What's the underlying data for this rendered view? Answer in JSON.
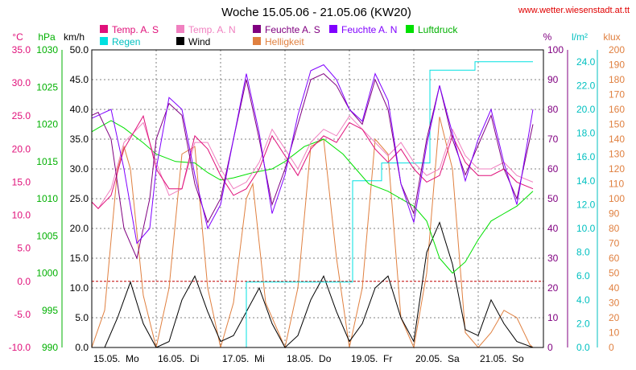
{
  "chart_data": {
    "type": "line",
    "title": "Woche 15.05.06 - 21.05.06 (KW20)",
    "source": "www.wetter.wiesenstadt.at.tt",
    "colors": {
      "temp_s": "#e0107a",
      "temp_n": "#f080c0",
      "feuchte_s": "#800080",
      "feuchte_n": "#8000ff",
      "luftdruck": "#00e000",
      "regen": "#00e0e0",
      "wind": "#000000",
      "helligkeit": "#e08040",
      "zero_line": "#c00000"
    },
    "legend": {
      "temp_s": "Temp. A. S",
      "temp_n": "Temp. A. N",
      "feuchte_s": "Feuchte A. S",
      "feuchte_n": "Feuchte A. N",
      "luftdruck": "Luftdruck",
      "regen": "Regen",
      "wind": "Wind",
      "helligkeit": "Helligkeit"
    },
    "axes": {
      "temp": {
        "unit": "°C",
        "min": -10,
        "max": 35,
        "ticks": [
          "35.0",
          "30.0",
          "25.0",
          "20.0",
          "15.0",
          "10.0",
          "5.0",
          "0.0",
          "-5.0",
          "-10.0"
        ]
      },
      "pressure": {
        "unit": "hPa",
        "min": 990,
        "max": 1030,
        "ticks": [
          "1030",
          "1025",
          "1020",
          "1015",
          "1010",
          "1005",
          "1000",
          "995",
          "990"
        ]
      },
      "wind": {
        "unit": "km/h",
        "min": 0,
        "max": 50,
        "ticks": [
          "50.0",
          "45.0",
          "40.0",
          "35.0",
          "30.0",
          "25.0",
          "20.0",
          "15.0",
          "10.0",
          "5.0",
          "0.0"
        ]
      },
      "humidity": {
        "unit": "%",
        "min": 0,
        "max": 100,
        "ticks": [
          "100",
          "90",
          "80",
          "70",
          "60",
          "50",
          "40",
          "30",
          "20",
          "10",
          "0"
        ]
      },
      "rain": {
        "unit": "l/m²",
        "min": 0,
        "max": 25,
        "ticks": [
          "24.0",
          "22.0",
          "20.0",
          "18.0",
          "16.0",
          "14.0",
          "12.0",
          "10.0",
          "8.0",
          "6.0",
          "4.0",
          "2.0",
          "0.0"
        ]
      },
      "brightness": {
        "unit": "klux",
        "min": 0,
        "max": 200,
        "ticks": [
          "200",
          "190",
          "180",
          "170",
          "160",
          "150",
          "140",
          "130",
          "120",
          "110",
          "100",
          "90",
          "80",
          "70",
          "60",
          "50",
          "40",
          "30",
          "20",
          "10",
          "0"
        ]
      }
    },
    "x_days": [
      "15.05.",
      "16.05.",
      "17.05.",
      "18.05.",
      "19.05.",
      "20.05.",
      "21.05."
    ],
    "x_day_names": [
      "Mo",
      "Di",
      "Mi",
      "Do",
      "Fr",
      "Sa",
      "So"
    ],
    "x_label_parts": [
      "15.05.  Mo",
      "16.05.  Di",
      "17.05.  Mi",
      "18.05.  Do",
      "19.05.  Fr",
      "20.05.  Sa",
      "21.05.  So"
    ],
    "grid": true,
    "series": {
      "luftdruck": [
        [
          0,
          1019
        ],
        [
          0.1,
          1019.5
        ],
        [
          0.3,
          1020.5
        ],
        [
          0.5,
          1019.5
        ],
        [
          0.8,
          1017.5
        ],
        [
          1.0,
          1016
        ],
        [
          1.3,
          1015
        ],
        [
          1.6,
          1014.8
        ],
        [
          1.8,
          1013.5
        ],
        [
          2.0,
          1012.5
        ],
        [
          2.2,
          1012.8
        ],
        [
          2.5,
          1013.5
        ],
        [
          2.8,
          1014
        ],
        [
          3.0,
          1015
        ],
        [
          3.3,
          1017
        ],
        [
          3.6,
          1018
        ],
        [
          3.9,
          1016
        ],
        [
          4.1,
          1014
        ],
        [
          4.3,
          1012
        ],
        [
          4.6,
          1011
        ],
        [
          5.0,
          1009
        ],
        [
          5.2,
          1007
        ],
        [
          5.4,
          1002
        ],
        [
          5.6,
          1000
        ],
        [
          5.8,
          1001.5
        ],
        [
          6.0,
          1004.5
        ],
        [
          6.2,
          1007
        ],
        [
          6.4,
          1008
        ],
        [
          6.6,
          1009
        ],
        [
          6.85,
          1011
        ]
      ],
      "temp_s": [
        [
          0,
          12
        ],
        [
          0.1,
          11
        ],
        [
          0.3,
          13
        ],
        [
          0.5,
          20
        ],
        [
          0.8,
          25
        ],
        [
          1.0,
          17
        ],
        [
          1.2,
          14
        ],
        [
          1.4,
          14
        ],
        [
          1.6,
          22
        ],
        [
          1.8,
          20
        ],
        [
          2.0,
          16
        ],
        [
          2.2,
          13
        ],
        [
          2.4,
          14
        ],
        [
          2.6,
          17
        ],
        [
          2.8,
          22
        ],
        [
          3.0,
          19
        ],
        [
          3.2,
          16
        ],
        [
          3.4,
          20
        ],
        [
          3.6,
          22
        ],
        [
          3.8,
          21
        ],
        [
          4.0,
          24
        ],
        [
          4.2,
          23
        ],
        [
          4.4,
          20
        ],
        [
          4.6,
          18
        ],
        [
          4.8,
          20
        ],
        [
          5.0,
          17
        ],
        [
          5.2,
          15
        ],
        [
          5.4,
          16
        ],
        [
          5.6,
          22
        ],
        [
          5.8,
          18
        ],
        [
          6.0,
          16
        ],
        [
          6.2,
          16
        ],
        [
          6.4,
          17
        ],
        [
          6.6,
          15
        ],
        [
          6.85,
          14
        ]
      ],
      "temp_n": [
        [
          0,
          12
        ],
        [
          0.1,
          11
        ],
        [
          0.3,
          14
        ],
        [
          0.5,
          21
        ],
        [
          0.8,
          24
        ],
        [
          1.0,
          18
        ],
        [
          1.2,
          13
        ],
        [
          1.4,
          14
        ],
        [
          1.6,
          21
        ],
        [
          1.8,
          21
        ],
        [
          2.0,
          17
        ],
        [
          2.2,
          14
        ],
        [
          2.4,
          15
        ],
        [
          2.6,
          18
        ],
        [
          2.8,
          23
        ],
        [
          3.0,
          20
        ],
        [
          3.2,
          17
        ],
        [
          3.4,
          21
        ],
        [
          3.6,
          23
        ],
        [
          3.8,
          22
        ],
        [
          4.0,
          25
        ],
        [
          4.2,
          23
        ],
        [
          4.4,
          21
        ],
        [
          4.6,
          19
        ],
        [
          4.8,
          21
        ],
        [
          5.0,
          18
        ],
        [
          5.2,
          16
        ],
        [
          5.4,
          17
        ],
        [
          5.6,
          23
        ],
        [
          5.8,
          19
        ],
        [
          6.0,
          17
        ],
        [
          6.2,
          17
        ],
        [
          6.4,
          18
        ],
        [
          6.6,
          16
        ],
        [
          6.85,
          15
        ]
      ],
      "feuchte_s": [
        [
          0,
          78
        ],
        [
          0.1,
          79
        ],
        [
          0.3,
          70
        ],
        [
          0.5,
          40
        ],
        [
          0.7,
          30
        ],
        [
          0.9,
          50
        ],
        [
          1.0,
          70
        ],
        [
          1.2,
          82
        ],
        [
          1.4,
          78
        ],
        [
          1.6,
          55
        ],
        [
          1.8,
          42
        ],
        [
          2.0,
          50
        ],
        [
          2.2,
          70
        ],
        [
          2.4,
          90
        ],
        [
          2.6,
          70
        ],
        [
          2.8,
          48
        ],
        [
          3.0,
          60
        ],
        [
          3.2,
          75
        ],
        [
          3.4,
          90
        ],
        [
          3.6,
          92
        ],
        [
          3.8,
          88
        ],
        [
          4.0,
          80
        ],
        [
          4.2,
          75
        ],
        [
          4.4,
          90
        ],
        [
          4.6,
          80
        ],
        [
          4.8,
          55
        ],
        [
          5.0,
          45
        ],
        [
          5.2,
          70
        ],
        [
          5.4,
          88
        ],
        [
          5.6,
          70
        ],
        [
          5.8,
          58
        ],
        [
          6.0,
          68
        ],
        [
          6.2,
          78
        ],
        [
          6.4,
          60
        ],
        [
          6.6,
          50
        ],
        [
          6.85,
          75
        ]
      ],
      "feuchte_n": [
        [
          0,
          77
        ],
        [
          0.1,
          78
        ],
        [
          0.3,
          80
        ],
        [
          0.5,
          60
        ],
        [
          0.7,
          35
        ],
        [
          0.9,
          40
        ],
        [
          1.0,
          60
        ],
        [
          1.2,
          84
        ],
        [
          1.4,
          80
        ],
        [
          1.6,
          58
        ],
        [
          1.8,
          40
        ],
        [
          2.0,
          48
        ],
        [
          2.2,
          70
        ],
        [
          2.4,
          92
        ],
        [
          2.6,
          72
        ],
        [
          2.8,
          45
        ],
        [
          3.0,
          58
        ],
        [
          3.2,
          78
        ],
        [
          3.4,
          93
        ],
        [
          3.6,
          95
        ],
        [
          3.8,
          90
        ],
        [
          4.0,
          80
        ],
        [
          4.2,
          76
        ],
        [
          4.4,
          92
        ],
        [
          4.6,
          83
        ],
        [
          4.8,
          55
        ],
        [
          5.0,
          42
        ],
        [
          5.2,
          68
        ],
        [
          5.4,
          88
        ],
        [
          5.6,
          72
        ],
        [
          5.8,
          56
        ],
        [
          6.0,
          70
        ],
        [
          6.2,
          80
        ],
        [
          6.4,
          62
        ],
        [
          6.6,
          48
        ],
        [
          6.85,
          80
        ]
      ],
      "regen": [
        [
          0,
          0
        ],
        [
          2.3,
          0
        ],
        [
          2.4,
          5.5
        ],
        [
          3.0,
          5.5
        ],
        [
          3.6,
          5.5
        ],
        [
          4.0,
          5.5
        ],
        [
          4.05,
          14
        ],
        [
          4.5,
          15.5
        ],
        [
          5.2,
          15.5
        ],
        [
          5.25,
          23.3
        ],
        [
          5.9,
          23.3
        ],
        [
          5.95,
          24
        ],
        [
          6.85,
          24
        ]
      ],
      "wind": [
        [
          0,
          0
        ],
        [
          0.2,
          0
        ],
        [
          0.4,
          5
        ],
        [
          0.6,
          11
        ],
        [
          0.8,
          4
        ],
        [
          1.0,
          0
        ],
        [
          1.2,
          1
        ],
        [
          1.4,
          8
        ],
        [
          1.6,
          12
        ],
        [
          1.8,
          6
        ],
        [
          2.0,
          1
        ],
        [
          2.2,
          2
        ],
        [
          2.4,
          6
        ],
        [
          2.6,
          10
        ],
        [
          2.8,
          4
        ],
        [
          3.0,
          0
        ],
        [
          3.2,
          2
        ],
        [
          3.4,
          8
        ],
        [
          3.6,
          12
        ],
        [
          3.8,
          6
        ],
        [
          4.0,
          1
        ],
        [
          4.2,
          4
        ],
        [
          4.4,
          10
        ],
        [
          4.6,
          12
        ],
        [
          4.8,
          5
        ],
        [
          5.0,
          1
        ],
        [
          5.2,
          16
        ],
        [
          5.4,
          21
        ],
        [
          5.6,
          14
        ],
        [
          5.8,
          3
        ],
        [
          6.0,
          2
        ],
        [
          6.2,
          8
        ],
        [
          6.4,
          4
        ],
        [
          6.6,
          1
        ],
        [
          6.85,
          0
        ]
      ],
      "helligkeit": [
        [
          0,
          0
        ],
        [
          0.2,
          25
        ],
        [
          0.4,
          120
        ],
        [
          0.5,
          135
        ],
        [
          0.6,
          120
        ],
        [
          0.8,
          35
        ],
        [
          1.0,
          0
        ],
        [
          1.2,
          40
        ],
        [
          1.4,
          130
        ],
        [
          1.6,
          135
        ],
        [
          1.8,
          40
        ],
        [
          2.0,
          0
        ],
        [
          2.2,
          30
        ],
        [
          2.4,
          100
        ],
        [
          2.5,
          110
        ],
        [
          2.7,
          30
        ],
        [
          3.0,
          0
        ],
        [
          3.2,
          40
        ],
        [
          3.4,
          135
        ],
        [
          3.6,
          140
        ],
        [
          3.8,
          60
        ],
        [
          4.0,
          0
        ],
        [
          4.2,
          40
        ],
        [
          4.4,
          140
        ],
        [
          4.6,
          130
        ],
        [
          4.8,
          20
        ],
        [
          5.0,
          0
        ],
        [
          5.2,
          50
        ],
        [
          5.4,
          155
        ],
        [
          5.6,
          120
        ],
        [
          5.8,
          10
        ],
        [
          6.0,
          0
        ],
        [
          6.2,
          10
        ],
        [
          6.4,
          25
        ],
        [
          6.6,
          20
        ],
        [
          6.8,
          2
        ],
        [
          6.85,
          0
        ]
      ]
    }
  }
}
